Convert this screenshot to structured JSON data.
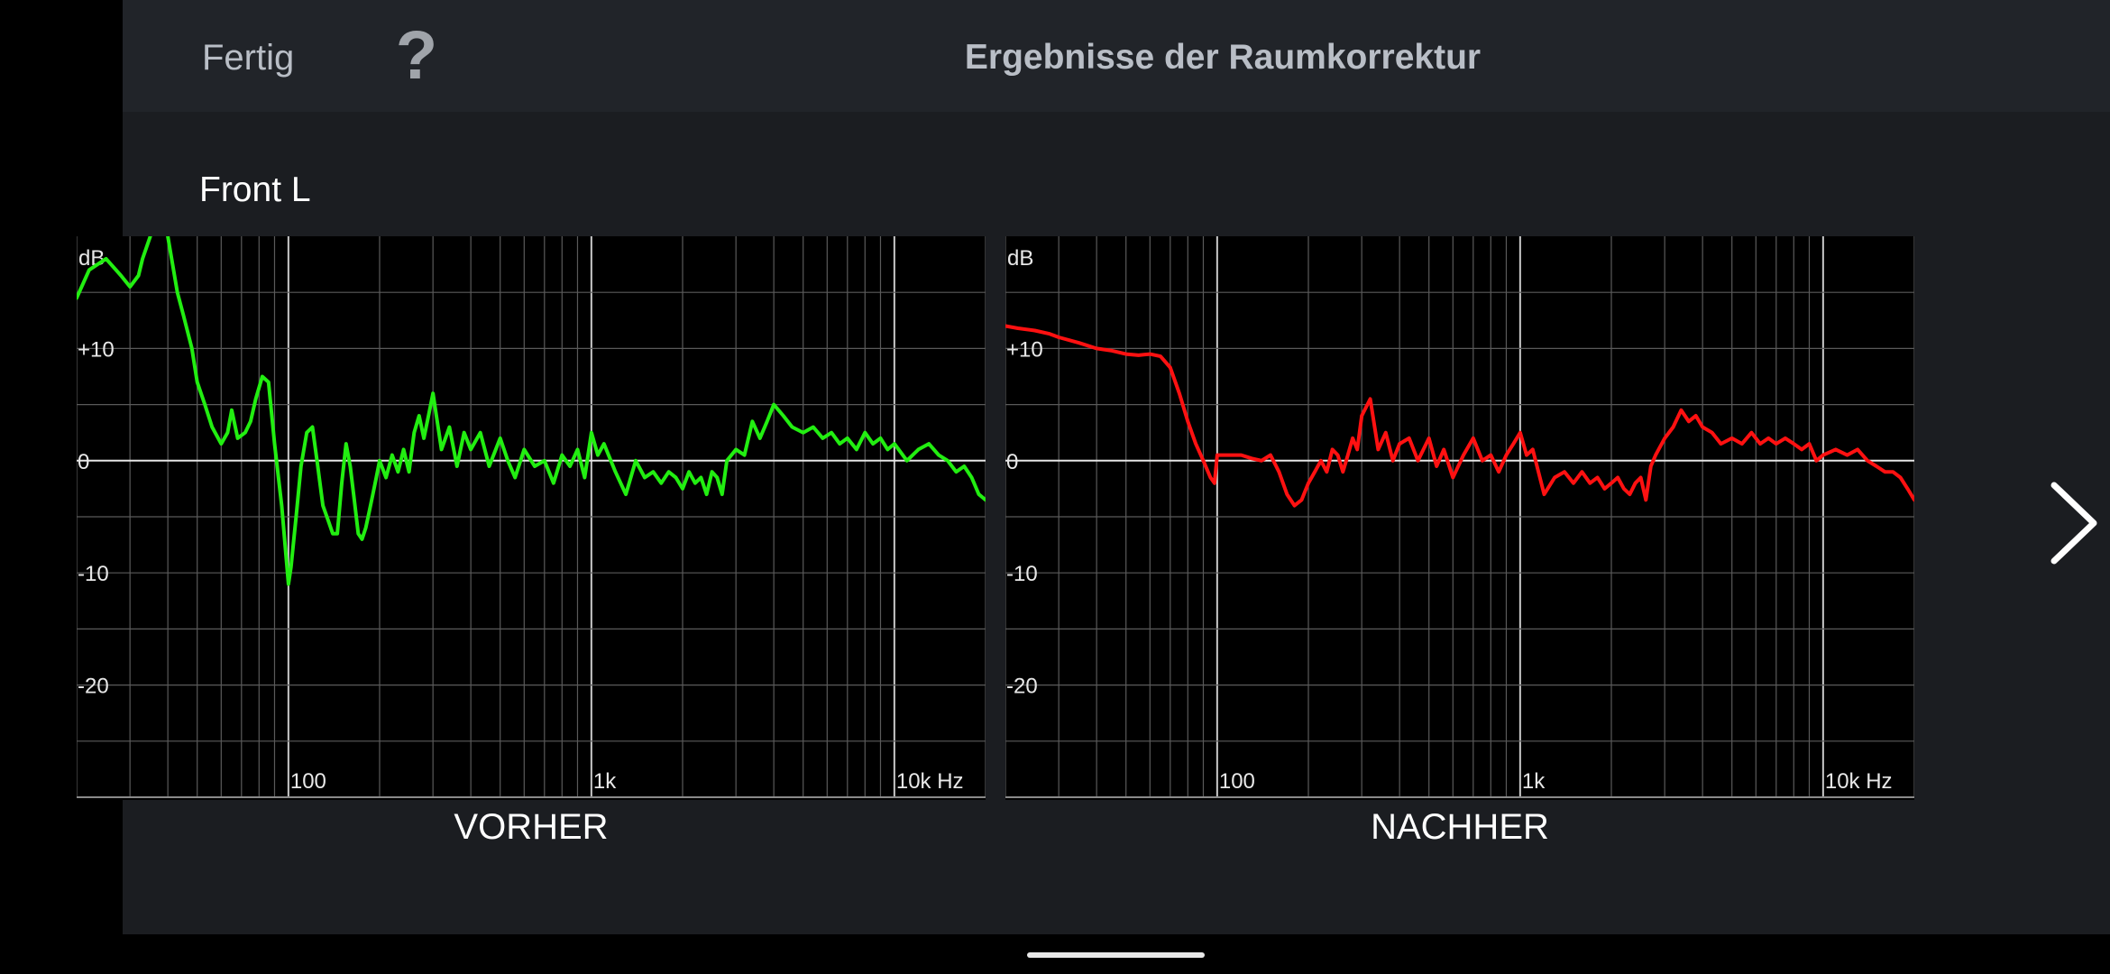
{
  "header": {
    "done_label": "Fertig",
    "help_label": "?",
    "title": "Ergebnisse der Raumkorrektur"
  },
  "channel": "Front L",
  "chart_data": [
    {
      "type": "line",
      "caption": "VORHER",
      "ylabel": "dB",
      "xscale": "log",
      "xlim": [
        20,
        20000
      ],
      "ylim": [
        -30,
        20
      ],
      "yticks": [
        {
          "v": 10,
          "label": "+10"
        },
        {
          "v": 0,
          "label": "0"
        },
        {
          "v": -10,
          "label": "-10"
        },
        {
          "v": -20,
          "label": "-20"
        }
      ],
      "xticks": [
        {
          "v": 100,
          "label": "100"
        },
        {
          "v": 1000,
          "label": "1k"
        },
        {
          "v": 10000,
          "label": "10k Hz"
        }
      ],
      "grid": true,
      "color": "#22ee11",
      "series": [
        {
          "x": [
            20,
            22,
            25,
            28,
            30,
            32,
            33,
            35,
            37,
            40,
            43,
            45,
            48,
            50,
            53,
            56,
            60,
            63,
            65,
            68,
            72,
            75,
            78,
            82,
            86,
            90,
            95,
            100,
            102,
            106,
            110,
            115,
            120,
            125,
            130,
            136,
            140,
            145,
            150,
            155,
            160,
            165,
            170,
            175,
            180,
            185,
            190,
            195,
            200,
            210,
            220,
            230,
            240,
            250,
            260,
            270,
            280,
            290,
            300,
            320,
            340,
            360,
            380,
            400,
            430,
            460,
            500,
            530,
            560,
            600,
            650,
            700,
            750,
            800,
            850,
            900,
            950,
            1000,
            1050,
            1100,
            1200,
            1300,
            1400,
            1500,
            1600,
            1700,
            1800,
            1900,
            2000,
            2100,
            2200,
            2300,
            2400,
            2500,
            2600,
            2700,
            2800,
            3000,
            3200,
            3400,
            3600,
            3800,
            4000,
            4300,
            4600,
            5000,
            5400,
            5800,
            6200,
            6600,
            7000,
            7500,
            8000,
            8500,
            9000,
            9500,
            10000,
            11000,
            12000,
            13000,
            14000,
            15000,
            16000,
            17000,
            18000,
            19000,
            20000
          ],
          "y": [
            14.5,
            17,
            18,
            16.5,
            15.5,
            16.5,
            18,
            20,
            25,
            20,
            15,
            13,
            10,
            7,
            5,
            3,
            1.5,
            2.5,
            4.5,
            2,
            2.5,
            3.5,
            5.5,
            7.5,
            7,
            1.5,
            -4,
            -11,
            -9.5,
            -5,
            -0.5,
            2.5,
            3,
            -0.5,
            -4,
            -5.5,
            -6.5,
            -6.5,
            -2,
            1.5,
            -0.5,
            -3.5,
            -6.5,
            -7,
            -6,
            -4.5,
            -3,
            -1.5,
            0,
            -1.5,
            0.5,
            -1,
            1,
            -1,
            2.5,
            4,
            2,
            4,
            6,
            1,
            3,
            -0.5,
            2.5,
            1,
            2.5,
            -0.5,
            2,
            0,
            -1.5,
            1,
            -0.5,
            0,
            -2,
            0.5,
            -0.5,
            1,
            -1.5,
            2.5,
            0.5,
            1.5,
            -1,
            -3,
            0,
            -1.5,
            -1,
            -2,
            -1,
            -1.5,
            -2.5,
            -1,
            -2,
            -1.5,
            -3,
            -1,
            -1.5,
            -3,
            0,
            1,
            0.5,
            3.5,
            2,
            3.5,
            5,
            4,
            3,
            2.5,
            3,
            2,
            2.5,
            1.5,
            2,
            1,
            2.5,
            1.5,
            2,
            1,
            1.5,
            0,
            1,
            1.5,
            0.5,
            0,
            -1,
            -0.5,
            -1.5,
            -3,
            -3.5
          ]
        }
      ]
    },
    {
      "type": "line",
      "caption": "NACHHER",
      "ylabel": "dB",
      "xscale": "log",
      "xlim": [
        20,
        20000
      ],
      "ylim": [
        -30,
        20
      ],
      "yticks": [
        {
          "v": 10,
          "label": "+10"
        },
        {
          "v": 0,
          "label": "0"
        },
        {
          "v": -10,
          "label": "-10"
        },
        {
          "v": -20,
          "label": "-20"
        }
      ],
      "xticks": [
        {
          "v": 100,
          "label": "100"
        },
        {
          "v": 1000,
          "label": "1k"
        },
        {
          "v": 10000,
          "label": "10k Hz"
        }
      ],
      "grid": true,
      "color": "#ff1111",
      "series": [
        {
          "x": [
            20,
            22,
            25,
            28,
            30,
            35,
            40,
            45,
            50,
            55,
            60,
            65,
            70,
            75,
            80,
            85,
            90,
            95,
            98,
            100,
            102,
            105,
            110,
            120,
            130,
            140,
            150,
            160,
            170,
            180,
            190,
            200,
            210,
            220,
            230,
            240,
            250,
            260,
            270,
            280,
            290,
            300,
            320,
            340,
            360,
            380,
            400,
            430,
            460,
            500,
            530,
            560,
            600,
            650,
            700,
            750,
            800,
            850,
            900,
            950,
            1000,
            1050,
            1100,
            1200,
            1300,
            1400,
            1500,
            1600,
            1700,
            1800,
            1900,
            2000,
            2100,
            2200,
            2300,
            2400,
            2500,
            2600,
            2700,
            2800,
            3000,
            3200,
            3400,
            3600,
            3800,
            4000,
            4300,
            4600,
            5000,
            5400,
            5800,
            6200,
            6600,
            7000,
            7500,
            8000,
            8500,
            9000,
            9500,
            10000,
            11000,
            12000,
            13000,
            14000,
            15000,
            16000,
            17000,
            18000,
            19000,
            20000
          ],
          "y": [
            12,
            11.8,
            11.6,
            11.3,
            11,
            10.5,
            10,
            9.8,
            9.5,
            9.4,
            9.5,
            9.3,
            8.3,
            6,
            3.5,
            1.5,
            0,
            -1.5,
            -2,
            0.5,
            0.5,
            0.5,
            0.5,
            0.5,
            0.2,
            0,
            0.5,
            -1,
            -3,
            -4,
            -3.5,
            -2,
            -1,
            0,
            -1,
            1,
            0.5,
            -1,
            0.5,
            2,
            1,
            4,
            5.5,
            1,
            2.5,
            0,
            1.5,
            2,
            0,
            2,
            -0.5,
            1,
            -1.5,
            0.5,
            2,
            0,
            0.5,
            -1,
            0.5,
            1.5,
            2.5,
            0.5,
            1,
            -3,
            -1.5,
            -1,
            -2,
            -1,
            -2,
            -1.5,
            -2.5,
            -2,
            -1.5,
            -2.5,
            -3,
            -2,
            -1.5,
            -3.5,
            -0.5,
            0.5,
            2,
            3,
            4.5,
            3.5,
            4,
            3,
            2.5,
            1.5,
            2,
            1.5,
            2.5,
            1.5,
            2,
            1.5,
            2,
            1.5,
            1,
            1.5,
            0,
            0.5,
            1,
            0.5,
            1,
            0,
            -0.5,
            -1,
            -1,
            -1.5,
            -2.5,
            -3.5
          ]
        }
      ]
    }
  ]
}
